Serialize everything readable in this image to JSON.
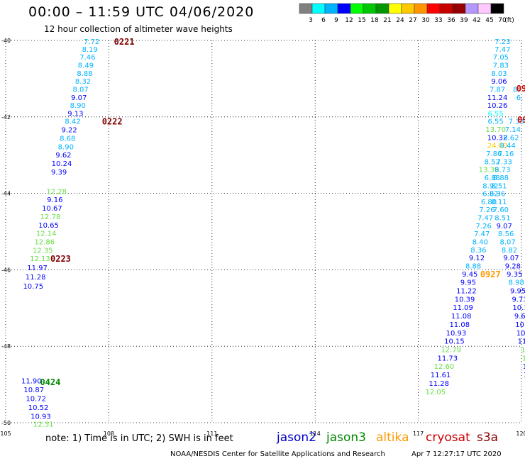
{
  "header": {
    "title": "00:00 – 11:59 UTC 04/06/2020",
    "subtitle": "12 hour collection of altimeter wave heights"
  },
  "colorbar": {
    "colors": [
      "#808080",
      "#00ffff",
      "#00b3ff",
      "#0000ff",
      "#00ff00",
      "#00c800",
      "#009600",
      "#ffff00",
      "#ffc800",
      "#ff9600",
      "#ff0000",
      "#c80000",
      "#960000",
      "#b496ff",
      "#ffc8ff",
      "#000000"
    ],
    "labels": [
      "3",
      "6",
      "9",
      "12",
      "15",
      "18",
      "21",
      "24",
      "27",
      "30",
      "33",
      "36",
      "39",
      "42",
      "45",
      "70"
    ],
    "unit": "(ft)"
  },
  "footer": {
    "note": "note:  1) Time is in UTC;  2) SWH is in feet",
    "satellites": [
      {
        "name": "jason2",
        "color": "#0000cc"
      },
      {
        "name": "jason3",
        "color": "#008800"
      },
      {
        "name": "altika",
        "color": "#ff9900"
      },
      {
        "name": "cryosat",
        "color": "#cc0000"
      },
      {
        "name": "s3a",
        "color": "#880000"
      }
    ],
    "credit": "NOAA/NESDIS Center for Satellite Applications and Research",
    "credit_time": "Apr  7 12:27:17 UTC 2020"
  },
  "chart_data": {
    "type": "scatter",
    "xlim": [
      105,
      120
    ],
    "ylim": [
      -50,
      -40
    ],
    "x_ticks": [
      105,
      108,
      111,
      114,
      117,
      120
    ],
    "y_ticks": [
      -40,
      -42,
      -44,
      -46,
      -48,
      -50
    ],
    "x_tick_labels": [
      "105",
      "108",
      "111",
      "114",
      "117",
      "120"
    ],
    "y_tick_labels": [
      "-40",
      "-42",
      "-44",
      "-46",
      "-48",
      "-50"
    ],
    "grid": "dotted",
    "labels": [
      {
        "x": 107.5,
        "y": -40.02,
        "text": "7.72",
        "color": "#00b3ff"
      },
      {
        "x": 107.45,
        "y": -40.22,
        "text": "8.19",
        "color": "#00b3ff"
      },
      {
        "x": 107.38,
        "y": -40.43,
        "text": "7.46",
        "color": "#00b3ff"
      },
      {
        "x": 107.33,
        "y": -40.64,
        "text": "8.49",
        "color": "#00b3ff"
      },
      {
        "x": 107.3,
        "y": -40.85,
        "text": "8.88",
        "color": "#00b3ff"
      },
      {
        "x": 107.25,
        "y": -41.06,
        "text": "8.32",
        "color": "#00b3ff"
      },
      {
        "x": 107.18,
        "y": -41.27,
        "text": "8.07",
        "color": "#00b3ff"
      },
      {
        "x": 107.13,
        "y": -41.48,
        "text": "9.07",
        "color": "#0000ff"
      },
      {
        "x": 107.1,
        "y": -41.69,
        "text": "8.90",
        "color": "#00b3ff"
      },
      {
        "x": 107.03,
        "y": -41.9,
        "text": "9.13",
        "color": "#0000ff"
      },
      {
        "x": 106.95,
        "y": -42.11,
        "text": "8.42",
        "color": "#00b3ff"
      },
      {
        "x": 106.85,
        "y": -42.33,
        "text": "9.22",
        "color": "#0000ff"
      },
      {
        "x": 106.8,
        "y": -42.55,
        "text": "8.68",
        "color": "#00b3ff"
      },
      {
        "x": 106.75,
        "y": -42.77,
        "text": "8.90",
        "color": "#00b3ff"
      },
      {
        "x": 106.68,
        "y": -42.99,
        "text": "9.62",
        "color": "#0000ff"
      },
      {
        "x": 106.63,
        "y": -43.21,
        "text": "10.24",
        "color": "#0000ff"
      },
      {
        "x": 106.55,
        "y": -43.43,
        "text": "9.39",
        "color": "#0000ff"
      },
      {
        "x": 106.48,
        "y": -43.94,
        "text": "12.28",
        "color": "#66dd44"
      },
      {
        "x": 106.43,
        "y": -44.16,
        "text": "9.16",
        "color": "#0000ff"
      },
      {
        "x": 106.35,
        "y": -44.38,
        "text": "10.67",
        "color": "#0000ff"
      },
      {
        "x": 106.3,
        "y": -44.6,
        "text": "12.78",
        "color": "#66dd44"
      },
      {
        "x": 106.25,
        "y": -44.82,
        "text": "10.65",
        "color": "#0000ff"
      },
      {
        "x": 106.18,
        "y": -45.04,
        "text": "12.14",
        "color": "#66dd44"
      },
      {
        "x": 106.13,
        "y": -45.26,
        "text": "12.86",
        "color": "#66dd44"
      },
      {
        "x": 106.08,
        "y": -45.48,
        "text": "12.35",
        "color": "#66dd44"
      },
      {
        "x": 106.0,
        "y": -45.7,
        "text": "12.13",
        "color": "#66dd44"
      },
      {
        "x": 105.92,
        "y": -45.94,
        "text": "11.97",
        "color": "#0000ff"
      },
      {
        "x": 105.87,
        "y": -46.18,
        "text": "11.28",
        "color": "#0000ff"
      },
      {
        "x": 105.8,
        "y": -46.42,
        "text": "10.75",
        "color": "#0000ff"
      },
      {
        "x": 105.75,
        "y": -48.9,
        "text": "11.90",
        "color": "#0000ff"
      },
      {
        "x": 105.82,
        "y": -49.13,
        "text": "10.87",
        "color": "#0000ff"
      },
      {
        "x": 105.88,
        "y": -49.36,
        "text": "10.72",
        "color": "#0000ff"
      },
      {
        "x": 105.95,
        "y": -49.59,
        "text": "10.52",
        "color": "#0000ff"
      },
      {
        "x": 106.02,
        "y": -49.82,
        "text": "10.93",
        "color": "#0000ff"
      },
      {
        "x": 106.1,
        "y": -50.03,
        "text": "12.31",
        "color": "#66dd44"
      },
      {
        "x": 119.45,
        "y": -40.02,
        "text": "7.23",
        "color": "#00b3ff"
      },
      {
        "x": 119.45,
        "y": -40.22,
        "text": "7.47",
        "color": "#00b3ff"
      },
      {
        "x": 119.4,
        "y": -40.43,
        "text": "7.05",
        "color": "#00b3ff"
      },
      {
        "x": 119.4,
        "y": -40.64,
        "text": "7.83",
        "color": "#00b3ff"
      },
      {
        "x": 119.35,
        "y": -40.85,
        "text": "8.03",
        "color": "#00b3ff"
      },
      {
        "x": 119.35,
        "y": -41.06,
        "text": "9.06",
        "color": "#0000ff"
      },
      {
        "x": 119.3,
        "y": -41.27,
        "text": "7.87",
        "color": "#00b3ff"
      },
      {
        "x": 119.3,
        "y": -41.48,
        "text": "11.24",
        "color": "#0000ff"
      },
      {
        "x": 119.3,
        "y": -41.69,
        "text": "10.26",
        "color": "#0000ff"
      },
      {
        "x": 119.25,
        "y": -41.9,
        "text": "6.55",
        "color": "#00ffff"
      },
      {
        "x": 119.25,
        "y": -42.11,
        "text": "6.55",
        "color": "#00b3ff"
      },
      {
        "x": 119.25,
        "y": -42.32,
        "text": "13.70",
        "color": "#66dd44"
      },
      {
        "x": 119.3,
        "y": -42.53,
        "text": "10.32",
        "color": "#0000ff"
      },
      {
        "x": 119.3,
        "y": -42.74,
        "text": "24.60",
        "color": "#ffc800"
      },
      {
        "x": 119.2,
        "y": -42.95,
        "text": "7.86",
        "color": "#00b3ff"
      },
      {
        "x": 119.15,
        "y": -43.16,
        "text": "8.52",
        "color": "#00b3ff"
      },
      {
        "x": 119.05,
        "y": -43.37,
        "text": "13.39",
        "color": "#66dd44"
      },
      {
        "x": 119.15,
        "y": -43.58,
        "text": "6.88",
        "color": "#00b3ff"
      },
      {
        "x": 119.1,
        "y": -43.79,
        "text": "8.92",
        "color": "#00b3ff"
      },
      {
        "x": 119.1,
        "y": -44.0,
        "text": "6.82",
        "color": "#00b3ff"
      },
      {
        "x": 119.05,
        "y": -44.21,
        "text": "6.80",
        "color": "#00b3ff"
      },
      {
        "x": 119.0,
        "y": -44.42,
        "text": "7.26",
        "color": "#00b3ff"
      },
      {
        "x": 118.95,
        "y": -44.63,
        "text": "7.47",
        "color": "#00b3ff"
      },
      {
        "x": 118.9,
        "y": -44.84,
        "text": "7.26",
        "color": "#00b3ff"
      },
      {
        "x": 118.85,
        "y": -45.05,
        "text": "7.47",
        "color": "#00b3ff"
      },
      {
        "x": 118.8,
        "y": -45.26,
        "text": "8.40",
        "color": "#00b3ff"
      },
      {
        "x": 118.75,
        "y": -45.47,
        "text": "8.36",
        "color": "#00b3ff"
      },
      {
        "x": 118.7,
        "y": -45.68,
        "text": "9.12",
        "color": "#0000ff"
      },
      {
        "x": 118.6,
        "y": -45.89,
        "text": "8.88",
        "color": "#00b3ff"
      },
      {
        "x": 118.5,
        "y": -46.1,
        "text": "9.45",
        "color": "#0000ff"
      },
      {
        "x": 118.45,
        "y": -46.32,
        "text": "9.95",
        "color": "#0000ff"
      },
      {
        "x": 118.4,
        "y": -46.54,
        "text": "11.22",
        "color": "#0000ff"
      },
      {
        "x": 118.35,
        "y": -46.76,
        "text": "10.39",
        "color": "#0000ff"
      },
      {
        "x": 118.3,
        "y": -46.98,
        "text": "11.09",
        "color": "#0000ff"
      },
      {
        "x": 118.25,
        "y": -47.2,
        "text": "11.08",
        "color": "#0000ff"
      },
      {
        "x": 118.2,
        "y": -47.42,
        "text": "11.08",
        "color": "#0000ff"
      },
      {
        "x": 118.1,
        "y": -47.64,
        "text": "10.93",
        "color": "#0000ff"
      },
      {
        "x": 118.05,
        "y": -47.86,
        "text": "10.15",
        "color": "#0000ff"
      },
      {
        "x": 117.95,
        "y": -48.08,
        "text": "12.79",
        "color": "#66dd44"
      },
      {
        "x": 117.85,
        "y": -48.3,
        "text": "11.73",
        "color": "#0000ff"
      },
      {
        "x": 117.75,
        "y": -48.52,
        "text": "12.60",
        "color": "#66dd44"
      },
      {
        "x": 117.65,
        "y": -48.74,
        "text": "11.61",
        "color": "#0000ff"
      },
      {
        "x": 117.6,
        "y": -48.96,
        "text": "11.28",
        "color": "#0000ff"
      },
      {
        "x": 117.5,
        "y": -49.18,
        "text": "12.05",
        "color": "#66dd44"
      },
      {
        "x": 119.55,
        "y": -42.95,
        "text": "7.16",
        "color": "#00b3ff"
      },
      {
        "x": 119.6,
        "y": -42.74,
        "text": "8.44",
        "color": "#00b3ff"
      },
      {
        "x": 119.7,
        "y": -42.53,
        "text": "8.62",
        "color": "#00b3ff"
      },
      {
        "x": 119.75,
        "y": -42.32,
        "text": "7.14",
        "color": "#00b3ff"
      },
      {
        "x": 119.85,
        "y": -42.11,
        "text": "7.33",
        "color": "#00b3ff"
      },
      {
        "x": 119.5,
        "y": -43.16,
        "text": "7.33",
        "color": "#00b3ff"
      },
      {
        "x": 119.45,
        "y": -43.37,
        "text": "8.73",
        "color": "#00b3ff"
      },
      {
        "x": 119.4,
        "y": -43.58,
        "text": "8.88",
        "color": "#00b3ff"
      },
      {
        "x": 119.35,
        "y": -43.79,
        "text": "8.51",
        "color": "#00b3ff"
      },
      {
        "x": 119.3,
        "y": -44.0,
        "text": "6.36",
        "color": "#00b3ff"
      },
      {
        "x": 119.35,
        "y": -44.21,
        "text": "8.11",
        "color": "#00b3ff"
      },
      {
        "x": 119.4,
        "y": -44.42,
        "text": "7.60",
        "color": "#00b3ff"
      },
      {
        "x": 119.45,
        "y": -44.63,
        "text": "8.51",
        "color": "#00b3ff"
      },
      {
        "x": 119.5,
        "y": -44.84,
        "text": "9.07",
        "color": "#0000ff"
      },
      {
        "x": 119.55,
        "y": -45.05,
        "text": "8.56",
        "color": "#00b3ff"
      },
      {
        "x": 119.6,
        "y": -45.26,
        "text": "8.07",
        "color": "#00b3ff"
      },
      {
        "x": 119.65,
        "y": -45.47,
        "text": "8.82",
        "color": "#00b3ff"
      },
      {
        "x": 119.7,
        "y": -45.68,
        "text": "9.07",
        "color": "#0000ff"
      },
      {
        "x": 119.75,
        "y": -45.89,
        "text": "9.28",
        "color": "#0000ff"
      },
      {
        "x": 119.8,
        "y": -46.1,
        "text": "9.35",
        "color": "#0000ff"
      },
      {
        "x": 119.85,
        "y": -46.32,
        "text": "8.98",
        "color": "#00b3ff"
      },
      {
        "x": 119.9,
        "y": -46.54,
        "text": "9.95",
        "color": "#0000ff"
      },
      {
        "x": 119.95,
        "y": -46.76,
        "text": "9.73",
        "color": "#0000ff"
      },
      {
        "x": 119.97,
        "y": -46.98,
        "text": "10.1",
        "color": "#0000ff"
      },
      {
        "x": 120.02,
        "y": -47.2,
        "text": "9.60",
        "color": "#0000ff"
      },
      {
        "x": 120.05,
        "y": -47.42,
        "text": "10.0",
        "color": "#0000ff"
      },
      {
        "x": 120.08,
        "y": -47.64,
        "text": "10.5",
        "color": "#0000ff"
      },
      {
        "x": 120.12,
        "y": -47.86,
        "text": "11.0",
        "color": "#0000ff"
      },
      {
        "x": 120.15,
        "y": -48.08,
        "text": "12.",
        "color": "#66dd44"
      },
      {
        "x": 120.18,
        "y": -48.3,
        "text": "12.",
        "color": "#66dd44"
      },
      {
        "x": 120.2,
        "y": -48.52,
        "text": "11.",
        "color": "#0000ff"
      },
      {
        "x": 120.22,
        "y": -48.74,
        "text": "10.",
        "color": "#0000ff"
      },
      {
        "x": 120.25,
        "y": -48.96,
        "text": "11.",
        "color": "#0000ff"
      },
      {
        "x": 120.28,
        "y": -49.18,
        "text": "11.",
        "color": "#0000ff"
      },
      {
        "x": 120.3,
        "y": -49.4,
        "text": "10.",
        "color": "#0000ff"
      },
      {
        "x": 119.85,
        "y": -41.27,
        "text": "8.",
        "color": "#00b3ff"
      },
      {
        "x": 119.95,
        "y": -41.48,
        "text": "6.",
        "color": "#00b3ff"
      }
    ],
    "time_labels": [
      {
        "x": 108.15,
        "y": -40.02,
        "text": "0221",
        "color": "#800000"
      },
      {
        "x": 107.8,
        "y": -42.11,
        "text": "0222",
        "color": "#800000"
      },
      {
        "x": 106.3,
        "y": -45.7,
        "text": "0223",
        "color": "#800000"
      },
      {
        "x": 106.0,
        "y": -48.92,
        "text": "0424",
        "color": "#008800"
      },
      {
        "x": 118.8,
        "y": -46.1,
        "text": "0927",
        "color": "#ff9900"
      },
      {
        "x": 119.85,
        "y": -41.24,
        "text": "091",
        "color": "#cc0000"
      },
      {
        "x": 119.88,
        "y": -42.06,
        "text": "091",
        "color": "#cc0000"
      },
      {
        "x": 120.1,
        "y": -45.06,
        "text": "0",
        "color": "#cc0000"
      }
    ]
  }
}
